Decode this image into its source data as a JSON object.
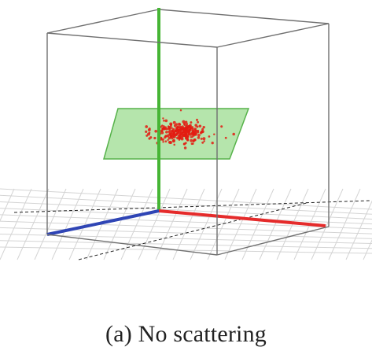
{
  "figure": {
    "caption": "(a)  No scattering",
    "colors": {
      "x_axis": "#e52b2b",
      "y_axis": "#46b535",
      "z_axis": "#2f45b5",
      "plane_fill": "#a8e19d",
      "plane_stroke": "#56b24a",
      "points": "#e31c12",
      "box_edges": "#707070",
      "grid": "#d4d4d4"
    },
    "point_cloud": {
      "count": 260,
      "distribution": "gaussian cluster"
    }
  }
}
